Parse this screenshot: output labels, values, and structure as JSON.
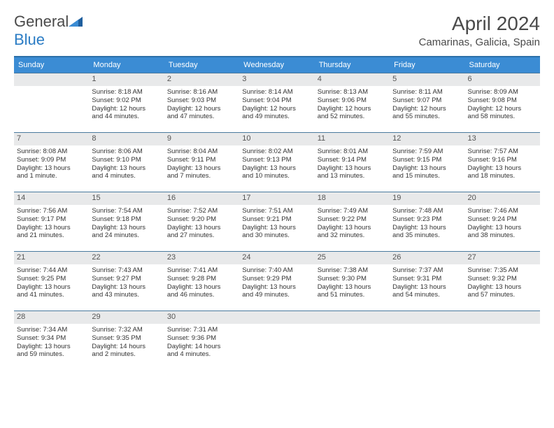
{
  "brand": {
    "part1": "General",
    "part2": "Blue"
  },
  "title": "April 2024",
  "location": "Camarinas, Galicia, Spain",
  "colors": {
    "header_bg": "#3b8cd4",
    "header_border": "#2b6fa8",
    "row_border": "#4a7a9e",
    "daynum_bg": "#e8e9ea",
    "text": "#333333",
    "title_text": "#4a4a4a",
    "brand_blue": "#2b7cc4"
  },
  "dayNames": [
    "Sunday",
    "Monday",
    "Tuesday",
    "Wednesday",
    "Thursday",
    "Friday",
    "Saturday"
  ],
  "weeks": [
    [
      null,
      {
        "n": "1",
        "sr": "Sunrise: 8:18 AM",
        "ss": "Sunset: 9:02 PM",
        "d1": "Daylight: 12 hours",
        "d2": "and 44 minutes."
      },
      {
        "n": "2",
        "sr": "Sunrise: 8:16 AM",
        "ss": "Sunset: 9:03 PM",
        "d1": "Daylight: 12 hours",
        "d2": "and 47 minutes."
      },
      {
        "n": "3",
        "sr": "Sunrise: 8:14 AM",
        "ss": "Sunset: 9:04 PM",
        "d1": "Daylight: 12 hours",
        "d2": "and 49 minutes."
      },
      {
        "n": "4",
        "sr": "Sunrise: 8:13 AM",
        "ss": "Sunset: 9:06 PM",
        "d1": "Daylight: 12 hours",
        "d2": "and 52 minutes."
      },
      {
        "n": "5",
        "sr": "Sunrise: 8:11 AM",
        "ss": "Sunset: 9:07 PM",
        "d1": "Daylight: 12 hours",
        "d2": "and 55 minutes."
      },
      {
        "n": "6",
        "sr": "Sunrise: 8:09 AM",
        "ss": "Sunset: 9:08 PM",
        "d1": "Daylight: 12 hours",
        "d2": "and 58 minutes."
      }
    ],
    [
      {
        "n": "7",
        "sr": "Sunrise: 8:08 AM",
        "ss": "Sunset: 9:09 PM",
        "d1": "Daylight: 13 hours",
        "d2": "and 1 minute."
      },
      {
        "n": "8",
        "sr": "Sunrise: 8:06 AM",
        "ss": "Sunset: 9:10 PM",
        "d1": "Daylight: 13 hours",
        "d2": "and 4 minutes."
      },
      {
        "n": "9",
        "sr": "Sunrise: 8:04 AM",
        "ss": "Sunset: 9:11 PM",
        "d1": "Daylight: 13 hours",
        "d2": "and 7 minutes."
      },
      {
        "n": "10",
        "sr": "Sunrise: 8:02 AM",
        "ss": "Sunset: 9:13 PM",
        "d1": "Daylight: 13 hours",
        "d2": "and 10 minutes."
      },
      {
        "n": "11",
        "sr": "Sunrise: 8:01 AM",
        "ss": "Sunset: 9:14 PM",
        "d1": "Daylight: 13 hours",
        "d2": "and 13 minutes."
      },
      {
        "n": "12",
        "sr": "Sunrise: 7:59 AM",
        "ss": "Sunset: 9:15 PM",
        "d1": "Daylight: 13 hours",
        "d2": "and 15 minutes."
      },
      {
        "n": "13",
        "sr": "Sunrise: 7:57 AM",
        "ss": "Sunset: 9:16 PM",
        "d1": "Daylight: 13 hours",
        "d2": "and 18 minutes."
      }
    ],
    [
      {
        "n": "14",
        "sr": "Sunrise: 7:56 AM",
        "ss": "Sunset: 9:17 PM",
        "d1": "Daylight: 13 hours",
        "d2": "and 21 minutes."
      },
      {
        "n": "15",
        "sr": "Sunrise: 7:54 AM",
        "ss": "Sunset: 9:18 PM",
        "d1": "Daylight: 13 hours",
        "d2": "and 24 minutes."
      },
      {
        "n": "16",
        "sr": "Sunrise: 7:52 AM",
        "ss": "Sunset: 9:20 PM",
        "d1": "Daylight: 13 hours",
        "d2": "and 27 minutes."
      },
      {
        "n": "17",
        "sr": "Sunrise: 7:51 AM",
        "ss": "Sunset: 9:21 PM",
        "d1": "Daylight: 13 hours",
        "d2": "and 30 minutes."
      },
      {
        "n": "18",
        "sr": "Sunrise: 7:49 AM",
        "ss": "Sunset: 9:22 PM",
        "d1": "Daylight: 13 hours",
        "d2": "and 32 minutes."
      },
      {
        "n": "19",
        "sr": "Sunrise: 7:48 AM",
        "ss": "Sunset: 9:23 PM",
        "d1": "Daylight: 13 hours",
        "d2": "and 35 minutes."
      },
      {
        "n": "20",
        "sr": "Sunrise: 7:46 AM",
        "ss": "Sunset: 9:24 PM",
        "d1": "Daylight: 13 hours",
        "d2": "and 38 minutes."
      }
    ],
    [
      {
        "n": "21",
        "sr": "Sunrise: 7:44 AM",
        "ss": "Sunset: 9:25 PM",
        "d1": "Daylight: 13 hours",
        "d2": "and 41 minutes."
      },
      {
        "n": "22",
        "sr": "Sunrise: 7:43 AM",
        "ss": "Sunset: 9:27 PM",
        "d1": "Daylight: 13 hours",
        "d2": "and 43 minutes."
      },
      {
        "n": "23",
        "sr": "Sunrise: 7:41 AM",
        "ss": "Sunset: 9:28 PM",
        "d1": "Daylight: 13 hours",
        "d2": "and 46 minutes."
      },
      {
        "n": "24",
        "sr": "Sunrise: 7:40 AM",
        "ss": "Sunset: 9:29 PM",
        "d1": "Daylight: 13 hours",
        "d2": "and 49 minutes."
      },
      {
        "n": "25",
        "sr": "Sunrise: 7:38 AM",
        "ss": "Sunset: 9:30 PM",
        "d1": "Daylight: 13 hours",
        "d2": "and 51 minutes."
      },
      {
        "n": "26",
        "sr": "Sunrise: 7:37 AM",
        "ss": "Sunset: 9:31 PM",
        "d1": "Daylight: 13 hours",
        "d2": "and 54 minutes."
      },
      {
        "n": "27",
        "sr": "Sunrise: 7:35 AM",
        "ss": "Sunset: 9:32 PM",
        "d1": "Daylight: 13 hours",
        "d2": "and 57 minutes."
      }
    ],
    [
      {
        "n": "28",
        "sr": "Sunrise: 7:34 AM",
        "ss": "Sunset: 9:34 PM",
        "d1": "Daylight: 13 hours",
        "d2": "and 59 minutes."
      },
      {
        "n": "29",
        "sr": "Sunrise: 7:32 AM",
        "ss": "Sunset: 9:35 PM",
        "d1": "Daylight: 14 hours",
        "d2": "and 2 minutes."
      },
      {
        "n": "30",
        "sr": "Sunrise: 7:31 AM",
        "ss": "Sunset: 9:36 PM",
        "d1": "Daylight: 14 hours",
        "d2": "and 4 minutes."
      },
      null,
      null,
      null,
      null
    ]
  ]
}
